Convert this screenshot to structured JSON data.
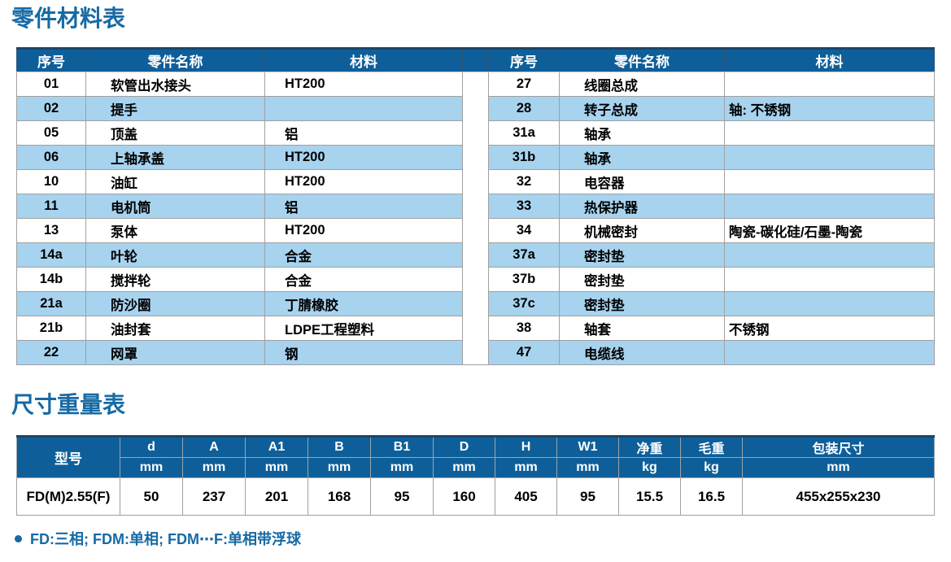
{
  "page": {
    "parts_title": "零件材料表",
    "size_title": "尺寸重量表",
    "footnote": "FD:三相; FDM:单相; FDM⋯F:单相带浮球"
  },
  "colors": {
    "header_bg": "#0e5f99",
    "stripe_bg": "#a7d3ef",
    "title_text": "#176aa4",
    "header_text": "#ffffff",
    "grid_line": "#a0a0a0",
    "table_top_border": "#1f4466"
  },
  "parts_table": {
    "headers": [
      "序号",
      "零件名称",
      "材料"
    ],
    "left_rows": [
      [
        "01",
        "软管出水接头",
        "HT200"
      ],
      [
        "02",
        "提手",
        ""
      ],
      [
        "05",
        "顶盖",
        "铝"
      ],
      [
        "06",
        "上轴承盖",
        "HT200"
      ],
      [
        "10",
        "油缸",
        "HT200"
      ],
      [
        "11",
        "电机筒",
        "铝"
      ],
      [
        "13",
        "泵体",
        "HT200"
      ],
      [
        "14a",
        "叶轮",
        "合金"
      ],
      [
        "14b",
        "搅拌轮",
        "合金"
      ],
      [
        "21a",
        "防沙圈",
        "丁腈橡胶"
      ],
      [
        "21b",
        "油封套",
        "LDPE工程塑料"
      ],
      [
        "22",
        "网罩",
        "钢"
      ]
    ],
    "right_rows": [
      [
        "27",
        "线圈总成",
        ""
      ],
      [
        "28",
        "转子总成",
        "轴: 不锈钢"
      ],
      [
        "31a",
        "轴承",
        ""
      ],
      [
        "31b",
        "轴承",
        ""
      ],
      [
        "32",
        "电容器",
        ""
      ],
      [
        "33",
        "热保护器",
        ""
      ],
      [
        "34",
        "机械密封",
        "陶瓷-碳化硅/石墨-陶瓷"
      ],
      [
        "37a",
        "密封垫",
        ""
      ],
      [
        "37b",
        "密封垫",
        ""
      ],
      [
        "37c",
        "密封垫",
        ""
      ],
      [
        "38",
        "轴套",
        "不锈钢"
      ],
      [
        "47",
        "电缆线",
        ""
      ]
    ]
  },
  "size_table": {
    "model_header": "型号",
    "columns": [
      {
        "label": "d",
        "unit": "mm"
      },
      {
        "label": "A",
        "unit": "mm"
      },
      {
        "label": "A1",
        "unit": "mm"
      },
      {
        "label": "B",
        "unit": "mm"
      },
      {
        "label": "B1",
        "unit": "mm"
      },
      {
        "label": "D",
        "unit": "mm"
      },
      {
        "label": "H",
        "unit": "mm"
      },
      {
        "label": "W1",
        "unit": "mm"
      },
      {
        "label": "净重",
        "unit": "kg"
      },
      {
        "label": "毛重",
        "unit": "kg"
      },
      {
        "label": "包装尺寸",
        "unit": "mm"
      }
    ],
    "rows": [
      {
        "model": "FD(M)2.55(F)",
        "values": [
          "50",
          "237",
          "201",
          "168",
          "95",
          "160",
          "405",
          "95",
          "15.5",
          "16.5",
          "455x255x230"
        ]
      }
    ]
  }
}
